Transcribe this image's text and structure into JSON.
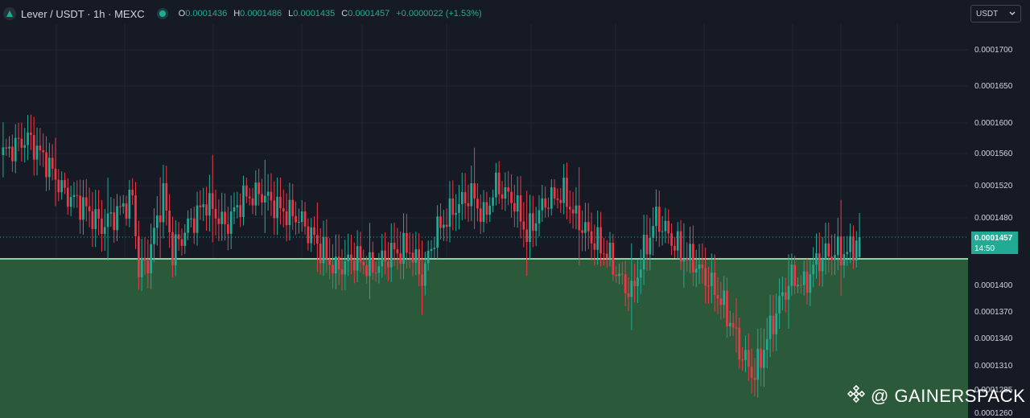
{
  "header": {
    "symbol_title": "Lever / USDT · 1h · MEXC",
    "ohlc": [
      {
        "key": "O",
        "value": "0.0001436"
      },
      {
        "key": "H",
        "value": "0.0001486"
      },
      {
        "key": "L",
        "value": "0.0001435"
      },
      {
        "key": "C",
        "value": "0.0001457"
      }
    ],
    "change": "+0.0000022 (+1.53%)"
  },
  "currency_select": {
    "value": "USDT"
  },
  "price_tag": {
    "price": "0.0001457",
    "countdown": "14:50"
  },
  "watermark": {
    "text": "@ GAINERSPACK"
  },
  "colors": {
    "up": "#22ab94",
    "down": "#f23645",
    "background": "#161a25",
    "zone": "#2b5a3a",
    "zone_line": "#8fd19e",
    "grid": "#222632"
  },
  "chart_data": {
    "type": "candlestick",
    "y_ticks": [
      "0.0001700",
      "0.0001650",
      "0.0001600",
      "0.0001560",
      "0.0001520",
      "0.0001480",
      "0.0001400",
      "0.0001370",
      "0.0001340",
      "0.0001310",
      "0.0001285",
      "0.0001260"
    ],
    "current_price": 0.0001457,
    "zone_top": 0.0001434,
    "ylim": [
      0.000126,
      0.000172
    ],
    "anchors": [
      [
        0,
        0.000156
      ],
      [
        4,
        0.000157
      ],
      [
        8,
        0.000158
      ],
      [
        14,
        0.000155
      ],
      [
        20,
        0.000151
      ],
      [
        26,
        0.0001495
      ],
      [
        32,
        0.000147
      ],
      [
        38,
        0.000149
      ],
      [
        42,
        0.0001505
      ],
      [
        44,
        0.000142
      ],
      [
        47,
        0.000143
      ],
      [
        52,
        0.000151
      ],
      [
        55,
        0.000144
      ],
      [
        60,
        0.000147
      ],
      [
        66,
        0.00015
      ],
      [
        72,
        0.000147
      ],
      [
        78,
        0.0001505
      ],
      [
        84,
        0.000151
      ],
      [
        90,
        0.000149
      ],
      [
        96,
        0.000148
      ],
      [
        100,
        0.000146
      ],
      [
        104,
        0.000144
      ],
      [
        108,
        0.000142
      ],
      [
        114,
        0.0001435
      ],
      [
        120,
        0.000142
      ],
      [
        126,
        0.000144
      ],
      [
        132,
        0.0001445
      ],
      [
        136,
        0.000141
      ],
      [
        140,
        0.000146
      ],
      [
        146,
        0.000149
      ],
      [
        152,
        0.000151
      ],
      [
        156,
        0.000148
      ],
      [
        160,
        0.000152
      ],
      [
        166,
        0.00015
      ],
      [
        170,
        0.000146
      ],
      [
        176,
        0.00015
      ],
      [
        182,
        0.000151
      ],
      [
        186,
        0.000148
      ],
      [
        190,
        0.000146
      ],
      [
        196,
        0.000144
      ],
      [
        200,
        0.000141
      ],
      [
        204,
        0.000139
      ],
      [
        208,
        0.000144
      ],
      [
        212,
        0.000148
      ],
      [
        216,
        0.000146
      ],
      [
        220,
        0.000144
      ],
      [
        224,
        0.000143
      ],
      [
        228,
        0.000141
      ],
      [
        232,
        0.000139
      ],
      [
        236,
        0.000136
      ],
      [
        240,
        0.000132
      ],
      [
        244,
        0.00013
      ],
      [
        248,
        0.000134
      ],
      [
        252,
        0.000138
      ],
      [
        256,
        0.000141
      ],
      [
        260,
        0.00014
      ],
      [
        264,
        0.000143
      ],
      [
        268,
        0.000144
      ],
      [
        274,
        0.000144
      ],
      [
        278,
        0.0001457
      ]
    ]
  }
}
